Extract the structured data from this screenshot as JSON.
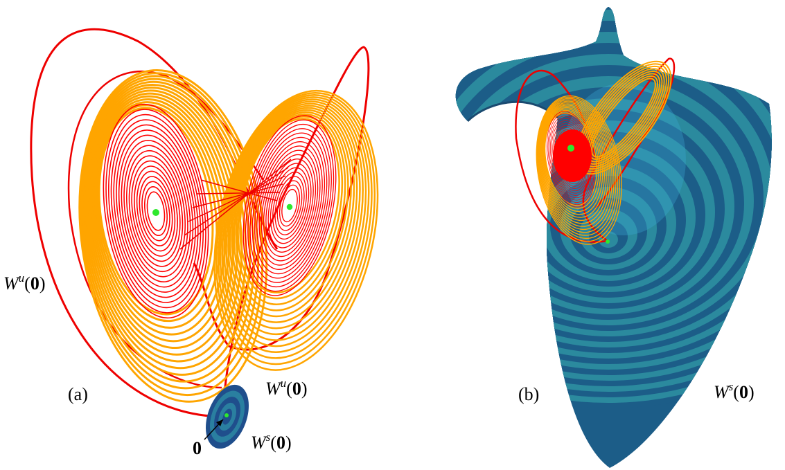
{
  "panels": [
    {
      "label": "(a)",
      "unstable_left": {
        "symbol": "W",
        "sup": "u",
        "open": "(",
        "arg": "0",
        "close": ")"
      },
      "unstable_right": {
        "symbol": "W",
        "sup": "u",
        "open": "(",
        "arg": "0",
        "close": ")"
      },
      "origin": "0",
      "stable": {
        "symbol": "W",
        "sup": "s",
        "open": "(",
        "arg": "0",
        "close": ")"
      }
    },
    {
      "label": "(b)",
      "stable": {
        "symbol": "W",
        "sup": "s",
        "open": "(",
        "arg": "0",
        "close": ")"
      }
    }
  ]
}
